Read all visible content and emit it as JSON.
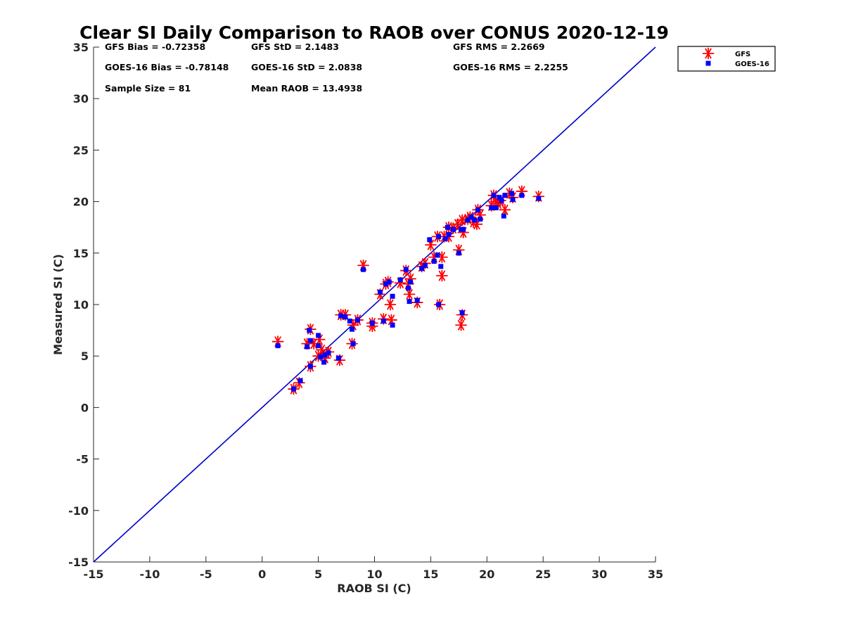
{
  "chart_data": {
    "type": "scatter",
    "title": "Clear SI Daily Comparison to RAOB over CONUS 2020-12-19",
    "xlabel": "RAOB SI (C)",
    "ylabel": "Measured SI (C)",
    "xlim": [
      -15,
      35
    ],
    "ylim": [
      -15,
      35
    ],
    "xticks": [
      -15,
      -10,
      -5,
      0,
      5,
      10,
      15,
      20,
      25,
      30,
      35
    ],
    "yticks": [
      -15,
      -10,
      -5,
      0,
      5,
      10,
      15,
      20,
      25,
      30,
      35
    ],
    "grid": false,
    "reference_line": {
      "type": "1:1",
      "color": "#0000cc"
    },
    "legend": {
      "placement": "outside-top-right"
    },
    "stats": [
      [
        "GFS Bias = -0.72358",
        "GFS StD = 2.1483",
        "GFS RMS = 2.2669"
      ],
      [
        "GOES-16 Bias = -0.78148",
        "GOES-16 StD = 2.0838",
        "GOES-16 RMS = 2.2255"
      ],
      [
        "Sample Size = 81",
        "Mean RAOB = 13.4938",
        ""
      ]
    ],
    "series": [
      {
        "name": "GFS",
        "marker": "asterisk",
        "color": "#ff0000",
        "points": [
          [
            1.4,
            6.4
          ],
          [
            2.8,
            1.8
          ],
          [
            3.3,
            2.4
          ],
          [
            4.0,
            6.2
          ],
          [
            4.3,
            7.6
          ],
          [
            4.3,
            4.0
          ],
          [
            4.6,
            6.2
          ],
          [
            5.0,
            5.0
          ],
          [
            5.1,
            6.6
          ],
          [
            5.3,
            5.6
          ],
          [
            5.6,
            4.8
          ],
          [
            5.9,
            5.4
          ],
          [
            6.9,
            4.6
          ],
          [
            7.0,
            9.0
          ],
          [
            7.4,
            9.0
          ],
          [
            8.0,
            6.2
          ],
          [
            8.1,
            8.0
          ],
          [
            8.5,
            8.5
          ],
          [
            9.0,
            13.8
          ],
          [
            9.8,
            7.9
          ],
          [
            9.8,
            8.2
          ],
          [
            10.5,
            11.0
          ],
          [
            10.8,
            8.6
          ],
          [
            11.0,
            12.0
          ],
          [
            11.2,
            12.2
          ],
          [
            11.4,
            10.0
          ],
          [
            11.5,
            8.5
          ],
          [
            12.3,
            12.1
          ],
          [
            12.8,
            13.3
          ],
          [
            13.0,
            12.0
          ],
          [
            13.1,
            11.0
          ],
          [
            13.2,
            12.5
          ],
          [
            13.8,
            10.2
          ],
          [
            14.2,
            13.7
          ],
          [
            14.5,
            14.0
          ],
          [
            15.0,
            15.8
          ],
          [
            15.3,
            14.6
          ],
          [
            15.6,
            16.6
          ],
          [
            15.8,
            10.0
          ],
          [
            16.0,
            12.8
          ],
          [
            16.0,
            14.6
          ],
          [
            16.2,
            16.6
          ],
          [
            16.6,
            17.5
          ],
          [
            16.6,
            16.6
          ],
          [
            17.0,
            17.4
          ],
          [
            17.4,
            17.8
          ],
          [
            17.5,
            15.3
          ],
          [
            17.7,
            8.0
          ],
          [
            17.8,
            18.2
          ],
          [
            17.8,
            9.0
          ],
          [
            17.9,
            17.0
          ],
          [
            18.3,
            18.3
          ],
          [
            18.5,
            18.5
          ],
          [
            18.8,
            18.0
          ],
          [
            19.1,
            17.8
          ],
          [
            19.2,
            19.2
          ],
          [
            19.4,
            18.7
          ],
          [
            20.4,
            19.6
          ],
          [
            20.6,
            20.6
          ],
          [
            20.8,
            20.0
          ],
          [
            21.0,
            19.8
          ],
          [
            21.2,
            20.1
          ],
          [
            21.6,
            19.2
          ],
          [
            22.0,
            20.8
          ],
          [
            22.3,
            20.4
          ],
          [
            23.1,
            21.0
          ],
          [
            24.6,
            20.5
          ]
        ]
      },
      {
        "name": "GOES-16",
        "marker": "square",
        "color": "#0000ff",
        "points": [
          [
            1.4,
            6.0
          ],
          [
            2.8,
            1.8
          ],
          [
            3.4,
            2.6
          ],
          [
            4.0,
            5.9
          ],
          [
            4.2,
            7.5
          ],
          [
            4.3,
            6.5
          ],
          [
            4.3,
            4.0
          ],
          [
            5.0,
            7.0
          ],
          [
            5.0,
            6.0
          ],
          [
            5.2,
            4.9
          ],
          [
            5.5,
            4.4
          ],
          [
            5.6,
            5.1
          ],
          [
            5.9,
            5.3
          ],
          [
            6.8,
            4.8
          ],
          [
            7.0,
            8.9
          ],
          [
            7.4,
            8.8
          ],
          [
            7.8,
            8.4
          ],
          [
            8.0,
            7.6
          ],
          [
            8.1,
            6.2
          ],
          [
            8.5,
            8.5
          ],
          [
            9.0,
            13.4
          ],
          [
            9.8,
            8.2
          ],
          [
            10.5,
            11.2
          ],
          [
            10.8,
            8.4
          ],
          [
            11.0,
            12.0
          ],
          [
            11.3,
            12.2
          ],
          [
            11.6,
            8.0
          ],
          [
            11.6,
            10.8
          ],
          [
            12.3,
            12.4
          ],
          [
            12.8,
            13.4
          ],
          [
            13.0,
            11.6
          ],
          [
            13.1,
            10.3
          ],
          [
            13.2,
            12.2
          ],
          [
            13.8,
            10.4
          ],
          [
            14.2,
            13.5
          ],
          [
            14.5,
            13.8
          ],
          [
            14.9,
            16.3
          ],
          [
            15.3,
            14.2
          ],
          [
            15.6,
            14.8
          ],
          [
            15.7,
            16.6
          ],
          [
            15.7,
            10.0
          ],
          [
            15.9,
            13.7
          ],
          [
            16.3,
            16.4
          ],
          [
            16.5,
            17.5
          ],
          [
            16.6,
            16.8
          ],
          [
            17.0,
            17.3
          ],
          [
            17.5,
            15.0
          ],
          [
            17.7,
            17.3
          ],
          [
            17.8,
            9.2
          ],
          [
            17.9,
            17.3
          ],
          [
            18.3,
            18.2
          ],
          [
            18.6,
            18.5
          ],
          [
            18.9,
            18.2
          ],
          [
            19.2,
            19.2
          ],
          [
            19.4,
            18.3
          ],
          [
            20.4,
            19.4
          ],
          [
            20.6,
            20.6
          ],
          [
            20.8,
            19.4
          ],
          [
            21.1,
            20.4
          ],
          [
            21.3,
            20.1
          ],
          [
            21.5,
            18.6
          ],
          [
            21.6,
            20.6
          ],
          [
            22.2,
            20.8
          ],
          [
            22.3,
            20.2
          ],
          [
            23.1,
            20.6
          ],
          [
            24.6,
            20.3
          ]
        ]
      }
    ]
  }
}
